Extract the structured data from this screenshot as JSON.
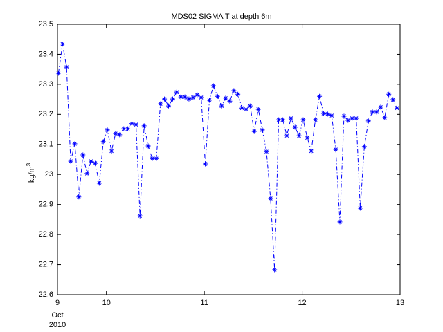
{
  "chart_data": {
    "type": "line",
    "title": "MDS02 SIGMA T at depth 6m",
    "ylabel": "kg/m",
    "ylabel_superscript": "3",
    "x_month": "Oct",
    "x_year": "2010",
    "xlim": [
      9.5,
      13
    ],
    "ylim": [
      22.6,
      23.5
    ],
    "xticks": [
      {
        "value": 9.5,
        "label": "9"
      },
      10,
      11,
      12,
      13
    ],
    "yticks": [
      22.6,
      22.7,
      22.8,
      22.9,
      23,
      23.1,
      23.2,
      23.3,
      23.4,
      23.5
    ],
    "grid": false,
    "x": [
      9.51,
      9.552,
      9.593,
      9.635,
      9.677,
      9.718,
      9.76,
      9.802,
      9.843,
      9.885,
      9.927,
      9.968,
      10.01,
      10.052,
      10.093,
      10.135,
      10.177,
      10.218,
      10.26,
      10.302,
      10.343,
      10.385,
      10.427,
      10.468,
      10.51,
      10.552,
      10.593,
      10.635,
      10.677,
      10.718,
      10.76,
      10.802,
      10.843,
      10.885,
      10.927,
      10.968,
      11.01,
      11.052,
      11.093,
      11.135,
      11.177,
      11.218,
      11.26,
      11.302,
      11.343,
      11.385,
      11.427,
      11.468,
      11.51,
      11.552,
      11.593,
      11.635,
      11.677,
      11.718,
      11.76,
      11.802,
      11.843,
      11.885,
      11.927,
      11.968,
      12.01,
      12.052,
      12.093,
      12.135,
      12.177,
      12.218,
      12.26,
      12.302,
      12.343,
      12.385,
      12.427,
      12.468,
      12.51,
      12.552,
      12.593,
      12.635,
      12.677,
      12.718,
      12.76,
      12.802,
      12.843,
      12.885,
      12.927,
      12.968
    ],
    "series": [
      {
        "color": "#0000ff",
        "marker": "asterisk",
        "line_style": "dashdot",
        "values": [
          23.337,
          23.434,
          23.357,
          23.044,
          23.102,
          22.925,
          23.065,
          23.003,
          23.044,
          23.037,
          22.971,
          23.109,
          23.148,
          23.078,
          23.136,
          23.132,
          23.152,
          23.152,
          23.169,
          23.166,
          22.862,
          23.162,
          23.095,
          23.053,
          23.053,
          23.235,
          23.251,
          23.228,
          23.251,
          23.274,
          23.258,
          23.258,
          23.251,
          23.256,
          23.265,
          23.256,
          23.035,
          23.247,
          23.295,
          23.26,
          23.228,
          23.254,
          23.244,
          23.279,
          23.267,
          23.221,
          23.217,
          23.228,
          23.143,
          23.217,
          23.148,
          23.076,
          22.92,
          22.683,
          23.182,
          23.182,
          23.129,
          23.187,
          23.157,
          23.129,
          23.182,
          23.122,
          23.078,
          23.182,
          23.26,
          23.203,
          23.201,
          23.196,
          23.083,
          22.842,
          23.194,
          23.18,
          23.187,
          23.187,
          22.888,
          23.093,
          23.178,
          23.208,
          23.208,
          23.224,
          23.189,
          23.267,
          23.249,
          23.221
        ]
      }
    ]
  }
}
